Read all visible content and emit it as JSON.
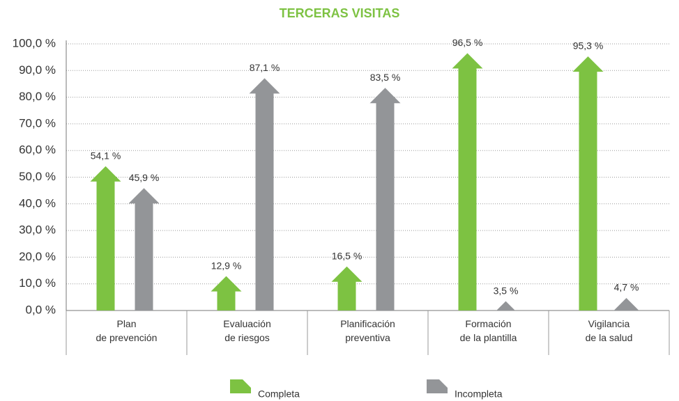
{
  "chart_data": {
    "type": "arrow_bar",
    "title": "TERCERAS VISITAS",
    "categories": [
      "Plan\nde prevención",
      "Evaluación\nde riesgos",
      "Planificación\npreventiva",
      "Formación\nde la plantilla",
      "Vigilancia\nde la salud"
    ],
    "series": [
      {
        "name": "Completa",
        "color": "#7dc242",
        "values": [
          54.1,
          12.9,
          16.5,
          96.5,
          95.3
        ],
        "value_labels": [
          "54,1 %",
          "12,9 %",
          "16,5 %",
          "96,5 %",
          "95,3 %"
        ]
      },
      {
        "name": "Incompleta",
        "color": "#939598",
        "values": [
          45.9,
          87.1,
          83.5,
          3.5,
          4.7
        ],
        "value_labels": [
          "45,9 %",
          "87,1 %",
          "83,5 %",
          "3,5 %",
          "4,7 %"
        ]
      }
    ],
    "ylim": [
      0,
      100
    ],
    "yticks": [
      {
        "value": 0,
        "label": "0,0 %"
      },
      {
        "value": 10,
        "label": "10,0 %"
      },
      {
        "value": 20,
        "label": "20,0 %"
      },
      {
        "value": 30,
        "label": "30,0 %"
      },
      {
        "value": 40,
        "label": "40,0 %"
      },
      {
        "value": 50,
        "label": "50,0 %"
      },
      {
        "value": 60,
        "label": "60,0 %"
      },
      {
        "value": 70,
        "label": "70,0 %"
      },
      {
        "value": 80,
        "label": "80,0 %"
      },
      {
        "value": 90,
        "label": "90,0 %"
      },
      {
        "value": 100,
        "label": "100,0 %"
      }
    ],
    "grid": true
  }
}
